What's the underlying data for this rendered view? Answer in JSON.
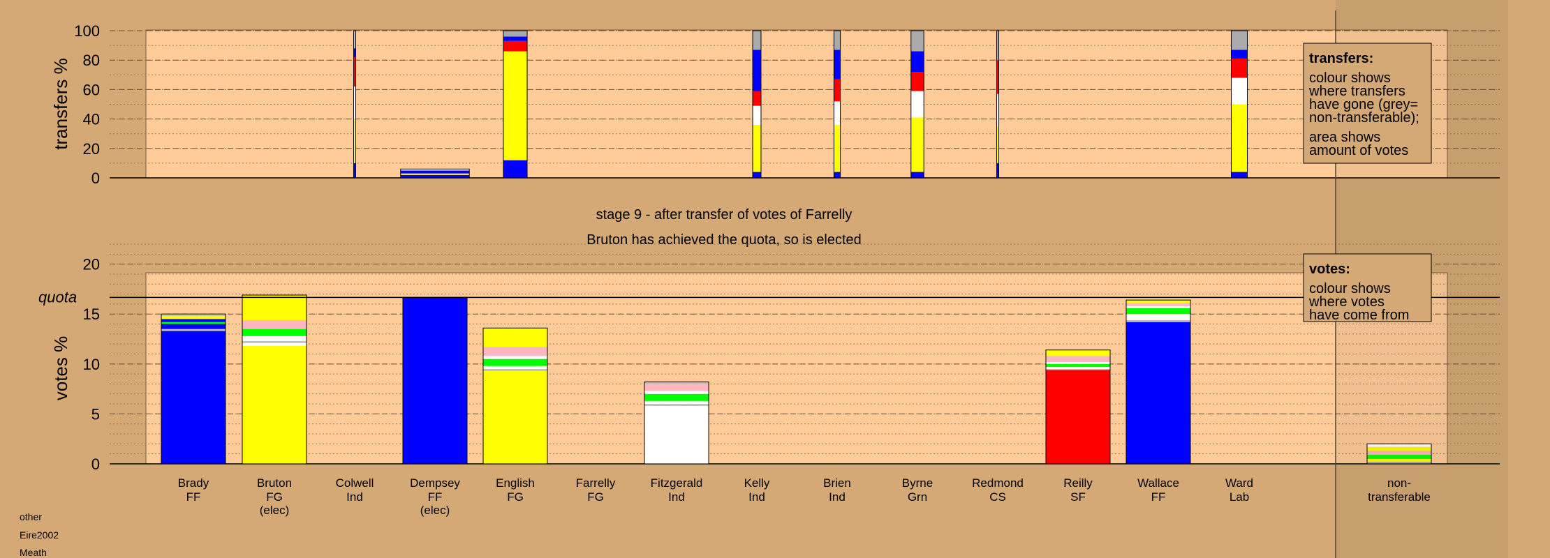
{
  "colors": {
    "background": "#D4A976",
    "plot_background": "#FFCC99",
    "FF": "#0000FF",
    "FG": "#FFFF00",
    "SF": "#FF0000",
    "Ind": "#FFFFFF",
    "Lab": "#FFB6C1",
    "Grn": "#00FF00",
    "CS": "#C0C0C0",
    "nontransferable": "#AAAAAA"
  },
  "stage_text": "stage 9 - after transfer of votes of Farrelly",
  "status_text": "Bruton has achieved the quota, so is elected",
  "footer": [
    "other",
    "Eire2002",
    "Meath"
  ],
  "candidates": [
    {
      "name": "Brady",
      "party": "FF",
      "status": ""
    },
    {
      "name": "Bruton",
      "party": "FG",
      "status": "(elec)"
    },
    {
      "name": "Colwell",
      "party": "Ind",
      "status": ""
    },
    {
      "name": "Dempsey",
      "party": "FF",
      "status": "(elec)"
    },
    {
      "name": "English",
      "party": "FG",
      "status": ""
    },
    {
      "name": "Farrelly",
      "party": "FG",
      "status": ""
    },
    {
      "name": "Fitzgerald",
      "party": "Ind",
      "status": ""
    },
    {
      "name": "Kelly",
      "party": "Ind",
      "status": ""
    },
    {
      "name": "Brien",
      "party": "Ind",
      "status": ""
    },
    {
      "name": "Byrne",
      "party": "Grn",
      "status": ""
    },
    {
      "name": "Redmond",
      "party": "CS",
      "status": ""
    },
    {
      "name": "Reilly",
      "party": "SF",
      "status": ""
    },
    {
      "name": "Wallace",
      "party": "FF",
      "status": ""
    },
    {
      "name": "Ward",
      "party": "Lab",
      "status": ""
    },
    {
      "name": "non-",
      "party": "transferable",
      "status": ""
    }
  ],
  "chart_data": [
    {
      "type": "bar",
      "stacked": true,
      "ylabel": "transfers %",
      "ylim": [
        0,
        100
      ],
      "yticks": [
        0,
        20,
        40,
        60,
        80,
        100
      ],
      "legend": {
        "title": "transfers:",
        "lines": [
          "colour shows",
          "where transfers",
          "have gone (grey=",
          "non-transferable);"
        ],
        "lines2": [
          "area shows",
          "amount of votes"
        ],
        "placement": "top-right"
      },
      "bars": [
        {
          "candidate": "Colwell",
          "width": 0.03,
          "segments": [
            [
              "FF",
              10
            ],
            [
              "FG",
              30
            ],
            [
              "Ind",
              22
            ],
            [
              "SF",
              20
            ],
            [
              "FF",
              6
            ],
            [
              "CS",
              12
            ]
          ]
        },
        {
          "candidate": "Dempsey",
          "width": 1.07,
          "segments": [
            [
              "FF",
              2
            ],
            [
              "FG",
              1
            ],
            [
              "FF",
              2
            ],
            [
              "Ind",
              1
            ]
          ]
        },
        {
          "candidate": "English",
          "width": 0.37,
          "segments": [
            [
              "FF",
              12
            ],
            [
              "FG",
              74
            ],
            [
              "SF",
              7
            ],
            [
              "FF",
              3
            ],
            [
              "nontransferable",
              4
            ]
          ]
        },
        {
          "candidate": "Kelly",
          "width": 0.13,
          "segments": [
            [
              "FF",
              4
            ],
            [
              "FG",
              32
            ],
            [
              "Ind",
              13
            ],
            [
              "SF",
              10
            ],
            [
              "FF",
              28
            ],
            [
              "nontransferable",
              13
            ]
          ]
        },
        {
          "candidate": "Brien",
          "width": 0.1,
          "segments": [
            [
              "FF",
              4
            ],
            [
              "FG",
              32
            ],
            [
              "Ind",
              16
            ],
            [
              "SF",
              15
            ],
            [
              "FF",
              20
            ],
            [
              "nontransferable",
              13
            ]
          ]
        },
        {
          "candidate": "Byrne",
          "width": 0.2,
          "segments": [
            [
              "FF",
              4
            ],
            [
              "FG",
              37
            ],
            [
              "Ind",
              18
            ],
            [
              "SF",
              13
            ],
            [
              "FF",
              14
            ],
            [
              "nontransferable",
              14
            ]
          ]
        },
        {
          "candidate": "Redmond",
          "width": 0.015,
          "segments": [
            [
              "FF",
              10
            ],
            [
              "FG",
              25
            ],
            [
              "Ind",
              22
            ],
            [
              "SF",
              23
            ],
            [
              "nontransferable",
              20
            ]
          ]
        },
        {
          "candidate": "Ward",
          "width": 0.25,
          "segments": [
            [
              "FF",
              4
            ],
            [
              "FG",
              46
            ],
            [
              "Ind",
              18
            ],
            [
              "SF",
              13
            ],
            [
              "FF",
              6
            ],
            [
              "nontransferable",
              13
            ]
          ]
        }
      ]
    },
    {
      "type": "bar",
      "stacked": true,
      "ylabel": "votes %",
      "ylim": [
        0,
        22
      ],
      "yticks": [
        0,
        5,
        10,
        15,
        20
      ],
      "quota": 16.67,
      "quota_label": "quota",
      "legend": {
        "title": "votes:",
        "lines": [
          "colour shows",
          "where votes",
          "have come from"
        ],
        "placement": "top-right"
      },
      "bars": [
        {
          "candidate": "Brady",
          "segments": [
            [
              "FF",
              13.3
            ],
            [
              "CS",
              0.2
            ],
            [
              "FF",
              0.5
            ],
            [
              "Grn",
              0.2
            ],
            [
              "FF",
              0.3
            ],
            [
              "FG",
              0.3
            ],
            [
              "CS",
              0.1
            ],
            [
              "FG",
              0.1
            ]
          ]
        },
        {
          "candidate": "Bruton",
          "segments": [
            [
              "FG",
              11.8
            ],
            [
              "Ind",
              0.3
            ],
            [
              "CS",
              0.2
            ],
            [
              "Ind",
              0.5
            ],
            [
              "Grn",
              0.7
            ],
            [
              "Lab",
              0.9
            ],
            [
              "FG",
              2.5
            ]
          ]
        },
        {
          "candidate": "Dempsey",
          "segments": [
            [
              "FF",
              16.67
            ]
          ]
        },
        {
          "candidate": "English",
          "segments": [
            [
              "FG",
              9.3
            ],
            [
              "CS",
              0.2
            ],
            [
              "Ind",
              0.3
            ],
            [
              "Grn",
              0.7
            ],
            [
              "Ind",
              0.3
            ],
            [
              "Lab",
              0.9
            ],
            [
              "FG",
              1.9
            ]
          ]
        },
        {
          "candidate": "Fitzgerald",
          "segments": [
            [
              "Ind",
              5.8
            ],
            [
              "CS",
              0.2
            ],
            [
              "Ind",
              0.3
            ],
            [
              "Grn",
              0.7
            ],
            [
              "Ind",
              0.3
            ],
            [
              "Lab",
              0.7
            ],
            [
              "CS",
              0.2
            ]
          ]
        },
        {
          "candidate": "Reilly",
          "segments": [
            [
              "SF",
              9.4
            ],
            [
              "CS",
              0.1
            ],
            [
              "Ind",
              0.2
            ],
            [
              "Grn",
              0.3
            ],
            [
              "Ind",
              0.2
            ],
            [
              "Lab",
              0.6
            ],
            [
              "FG",
              0.6
            ]
          ]
        },
        {
          "candidate": "Wallace",
          "segments": [
            [
              "FF",
              14.2
            ],
            [
              "CS",
              0.2
            ],
            [
              "Ind",
              0.6
            ],
            [
              "Grn",
              0.6
            ],
            [
              "Ind",
              0.2
            ],
            [
              "Lab",
              0.3
            ],
            [
              "FG",
              0.3
            ]
          ]
        },
        {
          "candidate": "non-",
          "segments": [
            [
              "nontransferable",
              0.2
            ],
            [
              "FG",
              0.3
            ],
            [
              "Grn",
              0.4
            ],
            [
              "Lab",
              0.4
            ],
            [
              "FG",
              0.4
            ],
            [
              "Ind",
              0.3
            ]
          ]
        }
      ]
    }
  ]
}
